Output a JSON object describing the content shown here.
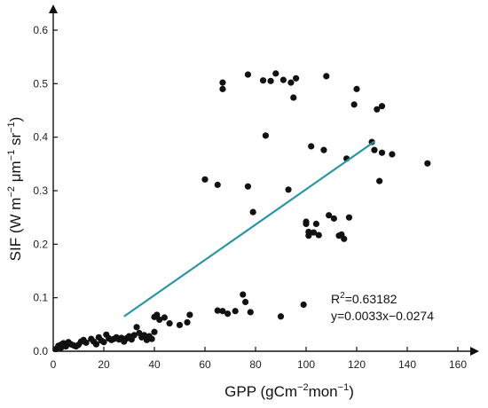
{
  "chart_data": {
    "type": "scatter",
    "title": "",
    "xlabel_main": "GPP (gCm",
    "xlabel_sup1": "−2",
    "xlabel_mid": "mon",
    "xlabel_sup2": "−1",
    "xlabel_end": ")",
    "ylabel_main": "SIF (W m",
    "ylabel_sup1": "−2",
    "ylabel_mid1": " μm",
    "ylabel_sup2": "−1",
    "ylabel_mid2": " sr",
    "ylabel_sup3": "−1",
    "ylabel_end": ")",
    "xlim": [
      0,
      160
    ],
    "ylim": [
      0,
      0.6
    ],
    "xticks": [
      0,
      20,
      40,
      60,
      80,
      100,
      120,
      140,
      160
    ],
    "yticks": [
      0.0,
      0.1,
      0.2,
      0.3,
      0.4,
      0.5,
      0.6
    ],
    "ytick_labels": [
      "0.0",
      "0.1",
      "0.2",
      "0.3",
      "0.4",
      "0.5",
      "0.6"
    ],
    "grid": false,
    "colors": {
      "points": "#111111",
      "fit_line": "#2a95a8",
      "axes": "#111111"
    },
    "annotation": {
      "r2_prefix": "R",
      "r2_sup": "2",
      "r2_value": "=0.63182",
      "equation": "y=0.0033x−0.0274"
    },
    "fit_line": {
      "slope": 0.0033,
      "intercept": -0.0274,
      "x_start": 28,
      "x_end": 127
    },
    "points": [
      [
        1,
        0.004
      ],
      [
        2,
        0.01
      ],
      [
        3,
        0.012
      ],
      [
        3,
        0.006
      ],
      [
        4,
        0.015
      ],
      [
        5,
        0.009
      ],
      [
        6,
        0.017
      ],
      [
        7,
        0.013
      ],
      [
        8,
        0.011
      ],
      [
        9,
        0.009
      ],
      [
        10,
        0.012
      ],
      [
        11,
        0.018
      ],
      [
        12,
        0.021
      ],
      [
        13,
        0.016
      ],
      [
        15,
        0.023
      ],
      [
        16,
        0.018
      ],
      [
        17,
        0.013
      ],
      [
        18,
        0.026
      ],
      [
        19,
        0.02
      ],
      [
        20,
        0.017
      ],
      [
        21,
        0.031
      ],
      [
        22,
        0.024
      ],
      [
        23,
        0.021
      ],
      [
        24,
        0.023
      ],
      [
        25,
        0.026
      ],
      [
        26,
        0.022
      ],
      [
        27,
        0.025
      ],
      [
        28,
        0.018
      ],
      [
        29,
        0.024
      ],
      [
        30,
        0.028
      ],
      [
        31,
        0.022
      ],
      [
        32,
        0.03
      ],
      [
        33,
        0.045
      ],
      [
        34,
        0.034
      ],
      [
        35,
        0.026
      ],
      [
        36,
        0.03
      ],
      [
        37,
        0.021
      ],
      [
        38,
        0.028
      ],
      [
        39,
        0.023
      ],
      [
        40,
        0.036
      ],
      [
        40,
        0.064
      ],
      [
        41,
        0.068
      ],
      [
        42,
        0.059
      ],
      [
        44,
        0.063
      ],
      [
        46,
        0.052
      ],
      [
        50,
        0.049
      ],
      [
        53,
        0.054
      ],
      [
        54,
        0.068
      ],
      [
        60,
        0.321
      ],
      [
        65,
        0.311
      ],
      [
        65,
        0.076
      ],
      [
        67,
        0.075
      ],
      [
        67,
        0.502
      ],
      [
        67,
        0.49
      ],
      [
        69,
        0.07
      ],
      [
        72,
        0.075
      ],
      [
        75,
        0.106
      ],
      [
        76,
        0.092
      ],
      [
        77,
        0.517
      ],
      [
        77,
        0.308
      ],
      [
        78,
        0.073
      ],
      [
        79,
        0.26
      ],
      [
        83,
        0.506
      ],
      [
        84,
        0.403
      ],
      [
        86,
        0.505
      ],
      [
        88,
        0.519
      ],
      [
        90,
        0.065
      ],
      [
        91,
        0.507
      ],
      [
        93,
        0.302
      ],
      [
        94,
        0.502
      ],
      [
        95,
        0.474
      ],
      [
        96,
        0.51
      ],
      [
        99,
        0.087
      ],
      [
        100,
        0.238
      ],
      [
        100,
        0.242
      ],
      [
        101,
        0.223
      ],
      [
        101,
        0.216
      ],
      [
        102,
        0.383
      ],
      [
        103,
        0.222
      ],
      [
        104,
        0.238
      ],
      [
        105,
        0.217
      ],
      [
        107,
        0.376
      ],
      [
        108,
        0.514
      ],
      [
        109,
        0.254
      ],
      [
        111,
        0.248
      ],
      [
        113,
        0.216
      ],
      [
        114,
        0.218
      ],
      [
        115,
        0.21
      ],
      [
        116,
        0.36
      ],
      [
        117,
        0.25
      ],
      [
        119,
        0.461
      ],
      [
        120,
        0.49
      ],
      [
        126,
        0.391
      ],
      [
        127,
        0.376
      ],
      [
        128,
        0.452
      ],
      [
        129,
        0.318
      ],
      [
        130,
        0.458
      ],
      [
        130,
        0.371
      ],
      [
        134,
        0.368
      ],
      [
        148,
        0.351
      ]
    ]
  }
}
